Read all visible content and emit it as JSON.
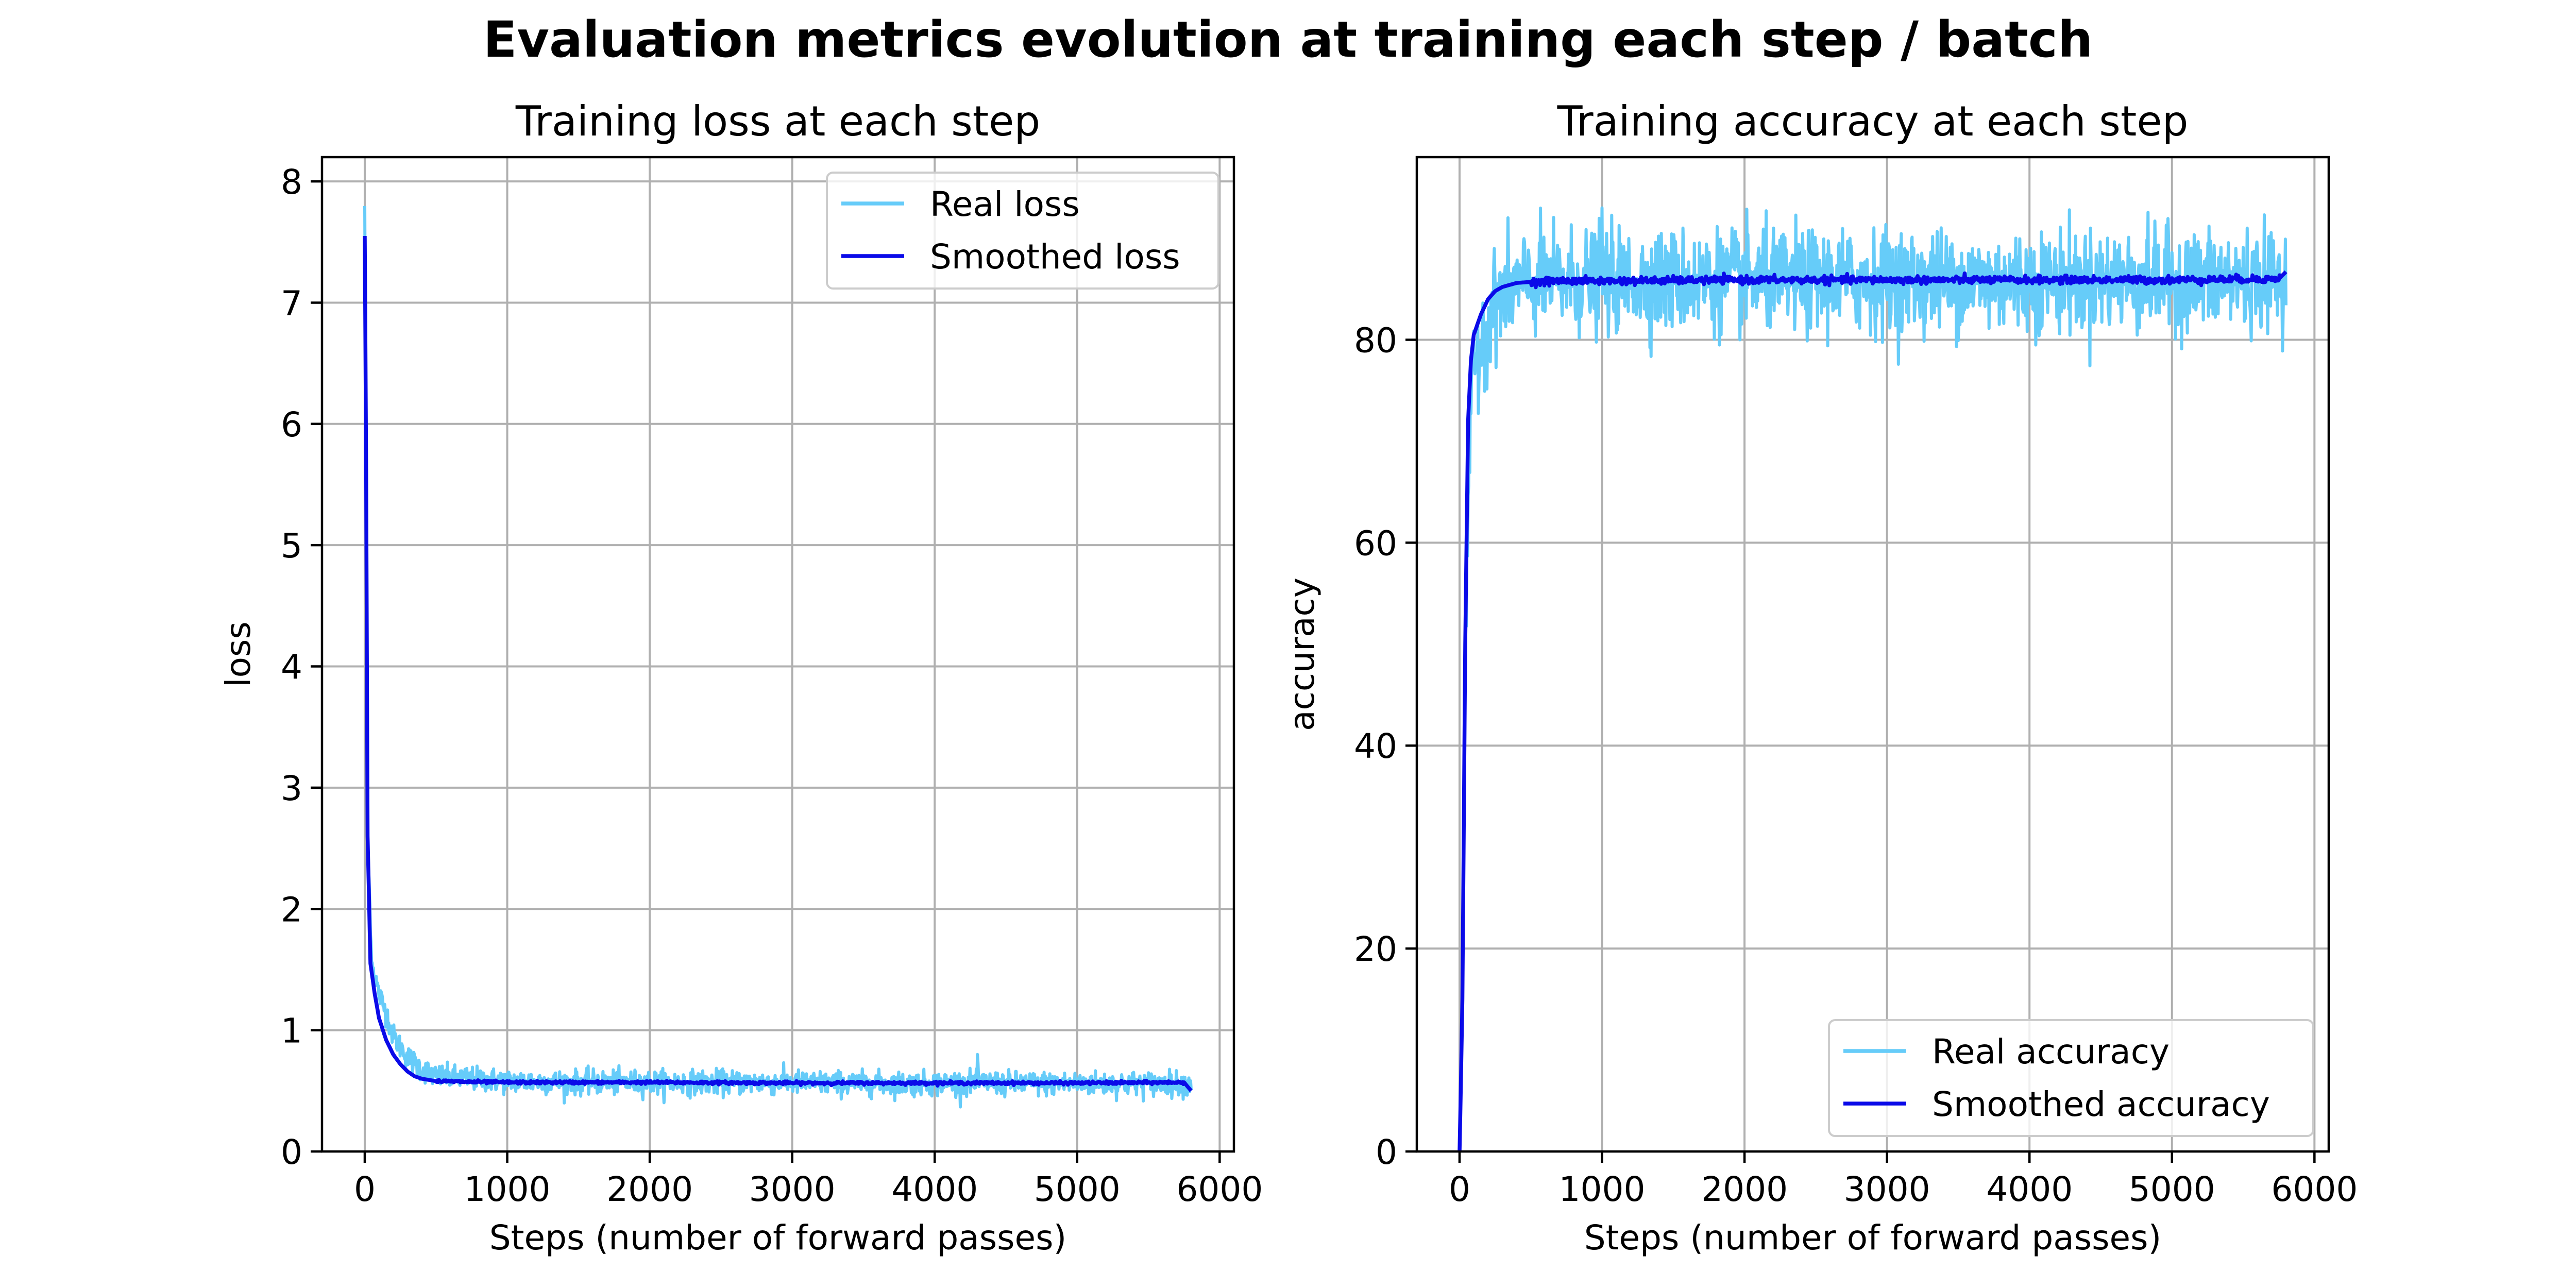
{
  "suptitle": "Evaluation metrics evolution at training each step / batch",
  "colors": {
    "real": "#66ccf9",
    "smoothed": "#0a0ae8"
  },
  "chart_data": [
    {
      "type": "line",
      "title": "Training loss at each step",
      "xlabel": "Steps (number of forward passes)",
      "ylabel": "loss",
      "xlim": [
        -300,
        6100
      ],
      "ylim": [
        0,
        8.2
      ],
      "xticks": [
        0,
        1000,
        2000,
        3000,
        4000,
        5000,
        6000
      ],
      "xtick_labels": [
        "0",
        "1000",
        "2000",
        "3000",
        "4000",
        "5000",
        "6000"
      ],
      "yticks": [
        0,
        1,
        2,
        3,
        4,
        5,
        6,
        7,
        8
      ],
      "ytick_labels": [
        "0",
        "1",
        "2",
        "3",
        "4",
        "5",
        "6",
        "7",
        "8"
      ],
      "grid": true,
      "legend": "upper right",
      "series": [
        {
          "name": "Real loss",
          "x": [
            0,
            20,
            50,
            100,
            150,
            200,
            300,
            400,
            500,
            1000,
            1500,
            2000,
            2500,
            3000,
            3500,
            4000,
            4300,
            4500,
            5000,
            5500,
            5800
          ],
          "y": [
            7.8,
            2.6,
            1.55,
            1.3,
            1.15,
            0.95,
            0.78,
            0.68,
            0.62,
            0.58,
            0.57,
            0.57,
            0.57,
            0.57,
            0.56,
            0.56,
            0.57,
            0.56,
            0.56,
            0.56,
            0.56
          ],
          "noise": 0.09,
          "spike_step": 4300,
          "spike_value": 0.8
        },
        {
          "name": "Smoothed loss",
          "x": [
            0,
            10,
            20,
            40,
            70,
            100,
            150,
            200,
            250,
            300,
            350,
            400,
            500,
            700,
            1000,
            2000,
            3000,
            4000,
            5000,
            5750,
            5800
          ],
          "y": [
            7.55,
            5.6,
            2.6,
            1.55,
            1.3,
            1.1,
            0.92,
            0.8,
            0.72,
            0.66,
            0.62,
            0.6,
            0.58,
            0.575,
            0.57,
            0.57,
            0.565,
            0.565,
            0.565,
            0.57,
            0.5
          ]
        }
      ]
    },
    {
      "type": "line",
      "title": "Training accuracy at each step",
      "xlabel": "Steps (number of forward passes)",
      "ylabel": "accuracy",
      "xlim": [
        -300,
        6100
      ],
      "ylim": [
        0,
        98
      ],
      "xticks": [
        0,
        1000,
        2000,
        3000,
        4000,
        5000,
        6000
      ],
      "xtick_labels": [
        "0",
        "1000",
        "2000",
        "3000",
        "4000",
        "5000",
        "6000"
      ],
      "yticks": [
        0,
        20,
        40,
        60,
        80
      ],
      "ytick_labels": [
        "0",
        "20",
        "40",
        "60",
        "80"
      ],
      "grid": true,
      "legend": "lower right",
      "series": [
        {
          "name": "Real accuracy",
          "x": [
            0,
            10,
            20,
            40,
            60,
            80,
            100,
            150,
            200,
            250,
            300,
            400,
            500,
            700,
            1000,
            2000,
            3000,
            4000,
            5000,
            5800
          ],
          "y": [
            0,
            7,
            15,
            45,
            65,
            73,
            77,
            80,
            82,
            83.5,
            84.5,
            85.3,
            85.6,
            85.7,
            85.8,
            85.8,
            85.8,
            85.8,
            85.8,
            85.8
          ],
          "noise": 4.5,
          "spike_step": 1000,
          "spike_value": 93
        },
        {
          "name": "Smoothed accuracy",
          "x": [
            0,
            10,
            20,
            40,
            60,
            80,
            100,
            150,
            200,
            250,
            300,
            400,
            500,
            700,
            1000,
            2000,
            3000,
            4000,
            5000,
            5750,
            5800
          ],
          "y": [
            0,
            7,
            15,
            50,
            72,
            78,
            80.5,
            82.5,
            84,
            84.8,
            85.2,
            85.6,
            85.7,
            85.8,
            85.8,
            85.9,
            85.9,
            85.9,
            85.9,
            86.0,
            86.7
          ]
        }
      ]
    }
  ]
}
